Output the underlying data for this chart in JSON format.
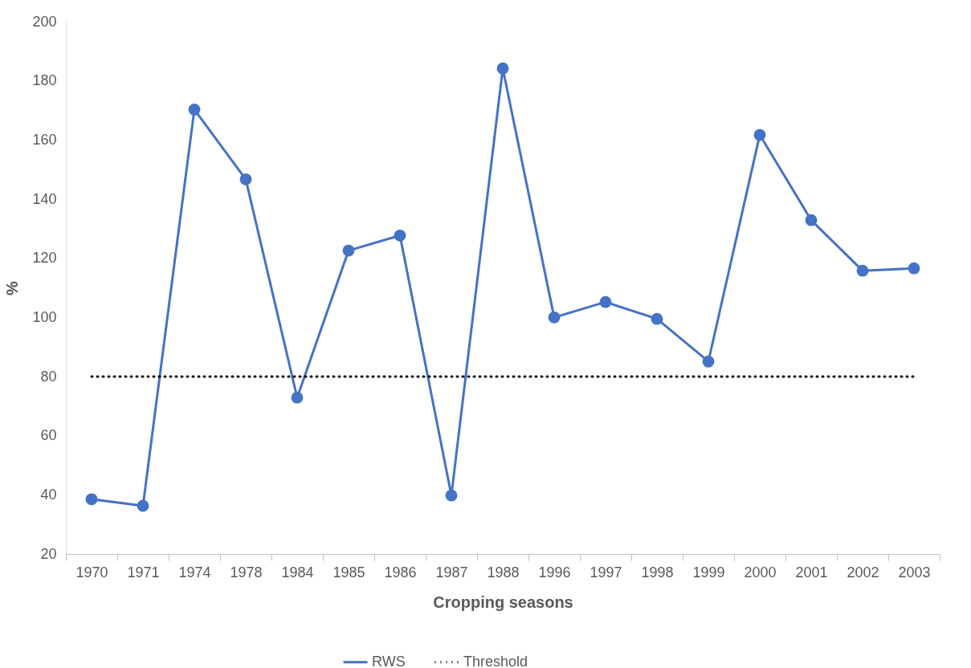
{
  "chart_data": {
    "type": "line",
    "xlabel": "Cropping seasons",
    "ylabel": "%",
    "categories": [
      "1970",
      "1971",
      "1974",
      "1978",
      "1984",
      "1985",
      "1986",
      "1987",
      "1988",
      "1996",
      "1997",
      "1998",
      "1999",
      "2000",
      "2001",
      "2002",
      "2003"
    ],
    "series": [
      {
        "name": "RWS",
        "color": "#4472c4",
        "marker": "circle",
        "line_style": "solid",
        "values": [
          38.5,
          36.3,
          170.3,
          146.7,
          72.9,
          122.6,
          127.7,
          39.8,
          184.2,
          100,
          105.2,
          99.5,
          85.1,
          161.7,
          132.9,
          115.8,
          116.6
        ]
      },
      {
        "name": "Threshold",
        "color": "#000000",
        "marker": "none",
        "line_style": "dotted",
        "values": [
          80,
          80,
          80,
          80,
          80,
          80,
          80,
          80,
          80,
          80,
          80,
          80,
          80,
          80,
          80,
          80,
          80
        ]
      }
    ],
    "ylim": [
      20,
      200
    ],
    "yticks": [
      20,
      40,
      60,
      80,
      100,
      120,
      140,
      160,
      180,
      200
    ],
    "grid": false,
    "legend": "bottom"
  }
}
